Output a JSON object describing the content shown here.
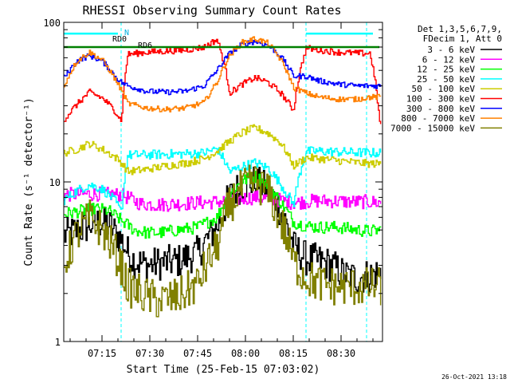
{
  "chart_data": {
    "type": "line",
    "title": "RHESSI Observing Summary Count Rates",
    "xlabel": "Start Time (25-Feb-15 07:03:02)",
    "ylabel": "Count Rate (s⁻¹ detector⁻¹)",
    "yscale": "log",
    "ylim": [
      1,
      100
    ],
    "y_ticks": [
      "1",
      "10",
      "100"
    ],
    "xlim_minutes_after_0703": [
      0,
      100
    ],
    "x_ticks": [
      "07:15",
      "07:30",
      "07:45",
      "08:00",
      "08:15",
      "08:30"
    ],
    "x_tick_minutes": [
      12,
      27,
      42,
      57,
      72,
      87
    ],
    "legend_header": [
      "Det 1,3,5,6,7,9,",
      "FDecim 1, Att 0"
    ],
    "legend_position": "right",
    "annotations": [
      "N",
      "RD0",
      "RD6"
    ],
    "timestamp": "26-Oct-2021 13:18",
    "night_intervals": [
      [
        0,
        18
      ],
      [
        76,
        95
      ]
    ],
    "day_intervals": [
      [
        18,
        76
      ]
    ],
    "series": [
      {
        "name": "3 - 6 keV",
        "color": "#000000",
        "x": [
          0,
          6,
          10,
          14,
          18,
          20,
          22,
          26,
          30,
          36,
          42,
          48,
          52,
          56,
          60,
          64,
          68,
          72,
          76,
          80,
          84,
          88,
          92,
          96,
          99
        ],
        "y": [
          4.6,
          5.1,
          5.6,
          5.4,
          4.3,
          3.6,
          3.2,
          3.0,
          3.1,
          3.2,
          3.6,
          5.2,
          8.1,
          9.7,
          10.0,
          8.9,
          6.6,
          3.9,
          3.3,
          3.2,
          3.0,
          2.6,
          2.5,
          2.6,
          2.7
        ]
      },
      {
        "name": "6 - 12 keV",
        "color": "#ff00ff",
        "x": [
          0,
          6,
          12,
          18,
          24,
          30,
          36,
          42,
          48,
          54,
          60,
          66,
          72,
          78,
          84,
          90,
          96,
          99
        ],
        "y": [
          8.3,
          8.4,
          8.4,
          8.3,
          7.3,
          7.2,
          7.3,
          7.4,
          7.5,
          7.8,
          8.0,
          7.8,
          7.4,
          7.6,
          7.6,
          7.5,
          7.5,
          7.4
        ]
      },
      {
        "name": "12 - 25 keV",
        "color": "#00ff00",
        "x": [
          0,
          6,
          10,
          14,
          18,
          22,
          26,
          30,
          36,
          42,
          48,
          52,
          56,
          60,
          64,
          68,
          72,
          76,
          80,
          86,
          92,
          96,
          99
        ],
        "y": [
          6.3,
          6.6,
          6.8,
          6.6,
          5.7,
          5.0,
          4.8,
          4.8,
          5.0,
          5.2,
          6.0,
          8.4,
          10.2,
          10.8,
          9.6,
          7.4,
          5.6,
          5.3,
          5.2,
          5.2,
          5.0,
          4.9,
          5.0
        ]
      },
      {
        "name": "25 - 50 keV",
        "color": "#00ffff",
        "x": [
          0,
          4,
          8,
          12,
          16,
          18,
          20,
          26,
          32,
          38,
          44,
          48,
          52,
          56,
          60,
          64,
          68,
          72,
          76,
          80,
          86,
          92,
          96,
          99
        ],
        "y": [
          7.7,
          8.8,
          9.6,
          9.0,
          7.6,
          6.4,
          14.7,
          14.8,
          14.9,
          15.0,
          15.2,
          16.2,
          11.6,
          12.5,
          13.2,
          12.2,
          9.6,
          7.2,
          15.5,
          15.6,
          15.4,
          15.3,
          15.2,
          15.2
        ]
      },
      {
        "name": "50 - 100 keV",
        "color": "#cccc00",
        "x": [
          0,
          4,
          8,
          12,
          16,
          18,
          20,
          26,
          32,
          38,
          44,
          48,
          52,
          56,
          60,
          64,
          68,
          72,
          76,
          80,
          86,
          92,
          96,
          99
        ],
        "y": [
          15.2,
          16.0,
          17.4,
          16.0,
          14.3,
          13.2,
          11.6,
          12.0,
          12.6,
          13.1,
          14.0,
          15.6,
          18.0,
          20.4,
          21.8,
          20.2,
          17.5,
          12.6,
          14.2,
          14.0,
          13.6,
          13.2,
          13.0,
          13.0
        ]
      },
      {
        "name": "100 - 300 keV",
        "color": "#ff0000",
        "x": [
          0,
          4,
          8,
          12,
          16,
          18,
          20,
          26,
          32,
          38,
          44,
          48,
          52,
          56,
          60,
          64,
          68,
          72,
          76,
          80,
          86,
          92,
          96,
          99
        ],
        "y": [
          24.5,
          30.5,
          36.5,
          33.5,
          27.8,
          24.0,
          63.0,
          65.0,
          66.0,
          67.0,
          70.0,
          78.0,
          36.0,
          41.0,
          45.0,
          42.0,
          36.0,
          28.0,
          69.0,
          67.0,
          65.0,
          64.0,
          64.0,
          23.5
        ]
      },
      {
        "name": "300 - 800 keV",
        "color": "#0000ff",
        "x": [
          0,
          4,
          8,
          12,
          16,
          18,
          20,
          26,
          32,
          38,
          44,
          48,
          52,
          56,
          60,
          64,
          68,
          72,
          76,
          80,
          86,
          92,
          96,
          99
        ],
        "y": [
          45.0,
          57.0,
          62.0,
          57.0,
          46.0,
          42.0,
          40.0,
          37.0,
          36.5,
          37.0,
          40.0,
          50.0,
          64.0,
          73.0,
          76.0,
          72.0,
          61.0,
          46.0,
          46.0,
          43.0,
          41.0,
          40.0,
          40.0,
          40.0
        ]
      },
      {
        "name": "800 - 7000 keV",
        "color": "#ff8000",
        "x": [
          0,
          4,
          8,
          12,
          16,
          18,
          20,
          26,
          32,
          38,
          44,
          48,
          52,
          56,
          60,
          64,
          68,
          72,
          76,
          80,
          86,
          92,
          96,
          99
        ],
        "y": [
          40.0,
          57.0,
          65.0,
          58.0,
          44.0,
          37.5,
          31.0,
          29.0,
          28.5,
          29.0,
          31.5,
          42.0,
          62.0,
          75.0,
          79.0,
          74.0,
          58.0,
          39.0,
          36.0,
          34.0,
          33.0,
          33.0,
          34.0,
          34.0
        ]
      },
      {
        "name": "7000 - 15000 keV",
        "color": "#808000",
        "x": [
          0,
          4,
          8,
          12,
          16,
          18,
          20,
          26,
          30,
          36,
          42,
          48,
          52,
          56,
          60,
          64,
          68,
          72,
          76,
          80,
          86,
          92,
          96,
          99
        ],
        "y": [
          3.0,
          4.7,
          5.9,
          5.0,
          3.6,
          2.9,
          2.2,
          1.9,
          1.8,
          1.9,
          2.3,
          3.9,
          7.2,
          9.2,
          10.0,
          8.6,
          5.6,
          3.1,
          2.5,
          2.3,
          2.2,
          2.2,
          2.2,
          2.2
        ]
      }
    ],
    "flag_lines": [
      {
        "name": "RD0",
        "color": "#00ffff",
        "y": 85,
        "segments": [
          [
            0,
            17
          ],
          [
            76,
            97
          ]
        ]
      },
      {
        "name": "RD6",
        "color": "#008000",
        "y": 70,
        "segments": [
          [
            0,
            99
          ]
        ]
      }
    ]
  }
}
